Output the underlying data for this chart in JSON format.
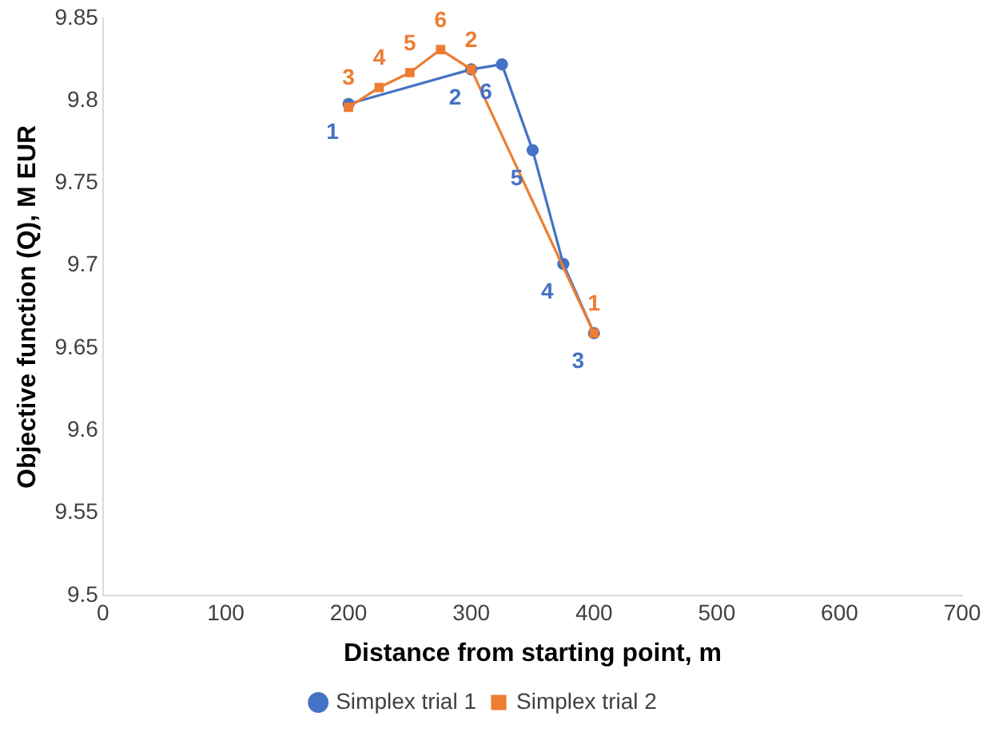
{
  "chart_data": {
    "type": "line",
    "xlabel": "Distance from starting point, m",
    "ylabel": "Objective function (Q), M EUR",
    "xlim": [
      0,
      700
    ],
    "xticks": [
      0,
      100,
      200,
      300,
      400,
      500,
      600,
      700
    ],
    "ylim": [
      9.5,
      9.85
    ],
    "yticks": [
      {
        "value": 9.5,
        "label": "9.5"
      },
      9.55,
      {
        "value": 9.6,
        "label": "9.6"
      },
      9.65,
      {
        "value": 9.7,
        "label": "9.7"
      },
      9.75,
      {
        "value": 9.8,
        "label": "9.8"
      },
      9.85
    ],
    "grid": false,
    "legend": "bottom",
    "line_style": "solid",
    "series": [
      {
        "name": "Simplex trial 1",
        "color": "#4472c4",
        "marker": "circle",
        "x": [
          200,
          300,
          325,
          350,
          375,
          400
        ],
        "values": [
          9.798,
          9.819,
          9.822,
          9.77,
          9.701,
          9.659
        ]
      },
      {
        "name": "Simplex trial 2",
        "color": "#ed7d31",
        "marker": "square",
        "x": [
          200,
          225,
          250,
          275,
          300,
          400
        ],
        "values": [
          9.796,
          9.808,
          9.817,
          9.831,
          9.819,
          9.659
        ]
      }
    ],
    "annotations": [
      {
        "text": "1",
        "x": 200,
        "y": 9.798
      },
      {
        "text": "2",
        "x": 300,
        "y": 9.819
      },
      {
        "text": "6",
        "x": 325,
        "y": 9.822
      },
      {
        "text": "5",
        "x": 350,
        "y": 9.77
      },
      {
        "text": "4",
        "x": 375,
        "y": 9.701
      },
      {
        "text": "3",
        "x": 400,
        "y": 9.659
      },
      {
        "text": "3",
        "x": 200,
        "y": 9.796
      },
      {
        "text": "4",
        "x": 225,
        "y": 9.808
      },
      {
        "text": "5",
        "x": 250,
        "y": 9.817
      },
      {
        "text": "6",
        "x": 275,
        "y": 9.831
      },
      {
        "text": "2",
        "x": 300,
        "y": 9.819
      },
      {
        "text": "1",
        "x": 400,
        "y": 9.659
      }
    ]
  }
}
